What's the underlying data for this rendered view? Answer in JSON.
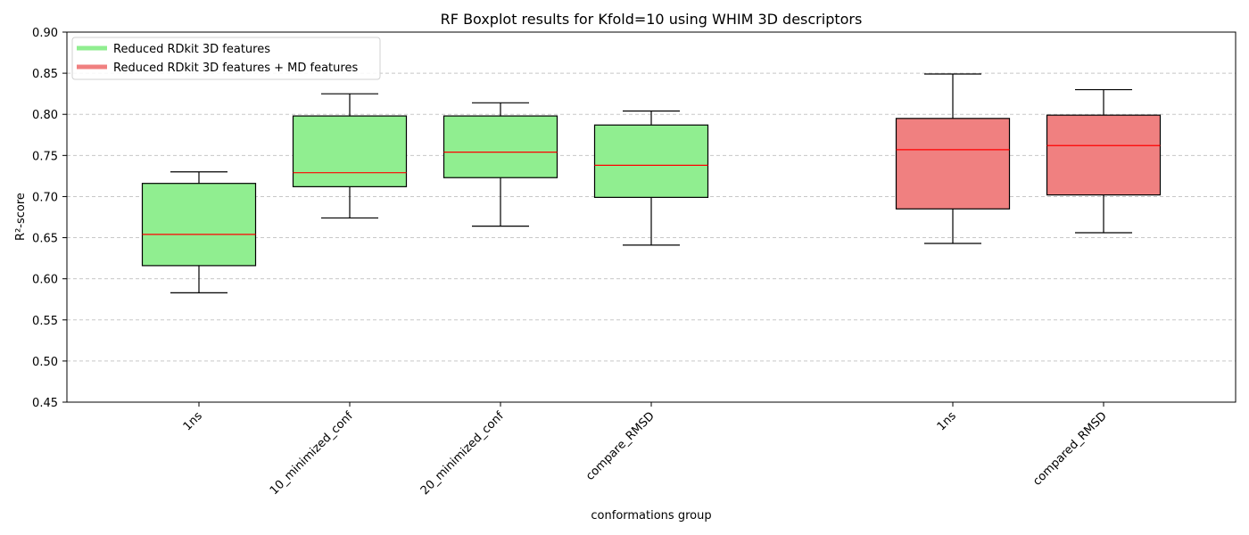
{
  "chart_data": {
    "type": "box",
    "title": "RF Boxplot results for Kfold=10 using WHIM 3D descriptors",
    "xlabel": "conformations group",
    "ylabel": "R²-score",
    "ylim": [
      0.45,
      0.9
    ],
    "yticks": [
      "0.45",
      "0.50",
      "0.55",
      "0.60",
      "0.65",
      "0.70",
      "0.75",
      "0.80",
      "0.85",
      "0.90"
    ],
    "grid": "y-dashed",
    "legend_position": "top-left",
    "colors": {
      "green": "#90ee90",
      "red": "#f08080",
      "median": "#ff0000",
      "grid": "#c8c8c8"
    },
    "series": [
      {
        "name": "Reduced RDkit 3D features",
        "color": "#90ee90",
        "boxes": [
          {
            "label": "1ns",
            "min": 0.583,
            "q1": 0.616,
            "median": 0.654,
            "q3": 0.716,
            "max": 0.73
          },
          {
            "label": "10_minimized_conf",
            "min": 0.674,
            "q1": 0.712,
            "median": 0.729,
            "q3": 0.798,
            "max": 0.825
          },
          {
            "label": "20_minimized_conf",
            "min": 0.664,
            "q1": 0.723,
            "median": 0.754,
            "q3": 0.798,
            "max": 0.814
          },
          {
            "label": "compare_RMSD",
            "min": 0.641,
            "q1": 0.699,
            "median": 0.738,
            "q3": 0.787,
            "max": 0.804
          }
        ]
      },
      {
        "name": "Reduced RDkit 3D features + MD features",
        "color": "#f08080",
        "boxes": [
          {
            "label": "1ns",
            "min": 0.643,
            "q1": 0.685,
            "median": 0.757,
            "q3": 0.795,
            "max": 0.849
          },
          {
            "label": "compared_RMSD",
            "min": 0.656,
            "q1": 0.702,
            "median": 0.762,
            "q3": 0.799,
            "max": 0.83
          }
        ]
      }
    ]
  }
}
